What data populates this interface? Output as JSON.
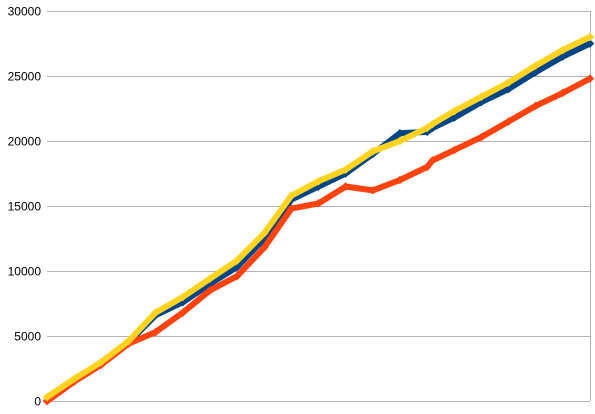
{
  "chart_data": {
    "type": "line",
    "title": "",
    "xlabel": "",
    "ylabel": "",
    "ylim": [
      0,
      30000
    ],
    "grid": true,
    "legend": "none",
    "y_ticks": [
      {
        "value": 0,
        "label": "0"
      },
      {
        "value": 5000,
        "label": "5000"
      },
      {
        "value": 10000,
        "label": "10000"
      },
      {
        "value": 15000,
        "label": "15000"
      },
      {
        "value": 20000,
        "label": "20000"
      },
      {
        "value": 25000,
        "label": "25000"
      },
      {
        "value": 30000,
        "label": "30000"
      }
    ],
    "xlim": [
      0,
      100
    ],
    "x": [
      0,
      5,
      10,
      15,
      20,
      25,
      30,
      35,
      40,
      45,
      50,
      55,
      60,
      65,
      70,
      71,
      75,
      80,
      85,
      90,
      95,
      100
    ],
    "series": [
      {
        "color": "#004586",
        "values": [
          0,
          1500,
          2800,
          4500,
          6600,
          7600,
          9000,
          10300,
          12500,
          15500,
          16500,
          17500,
          19000,
          20600,
          20700,
          21000,
          21800,
          23000,
          24000,
          25300,
          26500,
          27500
        ]
      },
      {
        "color": "#ff420e",
        "values": [
          0,
          1500,
          2800,
          4400,
          5300,
          6800,
          8500,
          9600,
          11800,
          14800,
          15200,
          16500,
          16200,
          17000,
          18000,
          18500,
          19300,
          20300,
          21500,
          22700,
          23700,
          24800
        ]
      },
      {
        "color": "#ffd320",
        "values": [
          300,
          1700,
          3000,
          4600,
          6800,
          8000,
          9400,
          10800,
          12900,
          15800,
          16900,
          17800,
          19200,
          20000,
          21000,
          21300,
          22300,
          23400,
          24500,
          25800,
          27000,
          28000
        ]
      }
    ]
  }
}
